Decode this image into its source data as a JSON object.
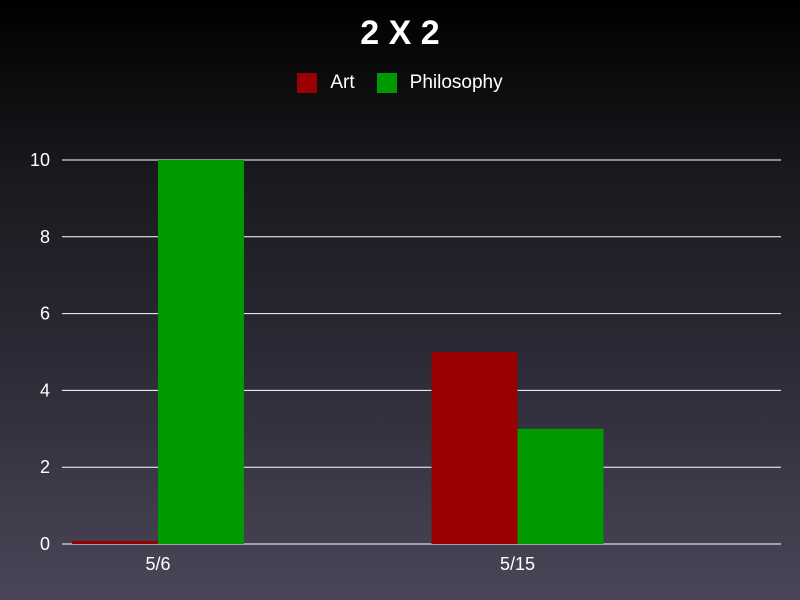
{
  "chart_data": {
    "type": "bar",
    "title": "2 X 2",
    "categories": [
      "5/6",
      "5/15"
    ],
    "series": [
      {
        "name": "Art",
        "values": [
          0,
          5
        ],
        "color": "#990000"
      },
      {
        "name": "Philosophy",
        "values": [
          10,
          3
        ],
        "color": "#009900"
      }
    ],
    "xlabel": "",
    "ylabel": "",
    "ylim": [
      0,
      10
    ],
    "yticks": [
      0,
      2,
      4,
      6,
      8,
      10
    ],
    "ytick_labels": [
      "0",
      "2",
      "4",
      "6",
      "8",
      "10"
    ],
    "grid": true,
    "legend_position": "top-center"
  }
}
